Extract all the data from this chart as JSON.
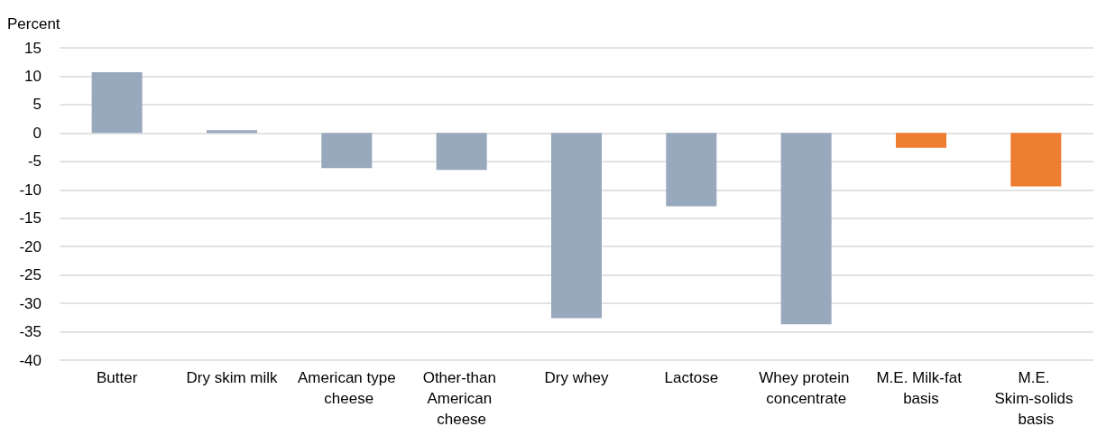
{
  "chart_data": {
    "type": "bar",
    "ylabel": "Percent",
    "categories": [
      "Butter",
      "Dry skim milk",
      "American type cheese",
      "Other-than American cheese",
      "Dry whey",
      "Lactose",
      "Whey protein concentrate",
      "M.E. Milk-fat basis",
      "M.E. Skim-solids basis"
    ],
    "values": [
      10.7,
      0.5,
      -6.2,
      -6.5,
      -32.6,
      -12.9,
      -33.7,
      -2.6,
      -9.4
    ],
    "colors": [
      "#98a8bd",
      "#98a8bd",
      "#98a8bd",
      "#98a8bd",
      "#98a8bd",
      "#98a8bd",
      "#98a8bd",
      "#ed7d31",
      "#ed7d31"
    ],
    "ylim": [
      -40,
      15
    ],
    "yticks": [
      -40,
      -35,
      -30,
      -25,
      -20,
      -15,
      -10,
      -5,
      0,
      5,
      10,
      15
    ],
    "grid": "y"
  }
}
